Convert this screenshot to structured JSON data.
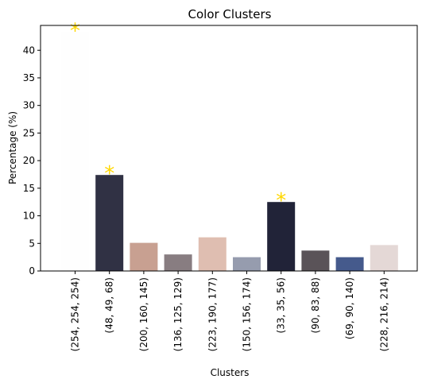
{
  "chart_data": {
    "type": "bar",
    "title": "Color Clusters",
    "xlabel": "Clusters",
    "ylabel": "Percentage (%)",
    "ylim": [
      0,
      44.5
    ],
    "yticks": [
      0,
      5,
      10,
      15,
      20,
      25,
      30,
      35,
      40
    ],
    "categories": [
      "(254, 254, 254)",
      "(48, 49, 68)",
      "(200, 160, 145)",
      "(136, 125, 129)",
      "(223, 190, 177)",
      "(150, 156, 174)",
      "(33, 35, 56)",
      "(90, 83, 88)",
      "(69, 90, 140)",
      "(228, 216, 214)"
    ],
    "values": [
      43.3,
      17.4,
      5.1,
      3.0,
      6.1,
      2.5,
      12.5,
      3.7,
      2.5,
      4.7
    ],
    "bar_colors": [
      "#fefefe",
      "#303144",
      "#c8a091",
      "#887d81",
      "#dfbeb1",
      "#969cae",
      "#212338",
      "#5a5358",
      "#455a8c",
      "#e4d8d6"
    ],
    "highlighted_indices": [
      0,
      1,
      6
    ],
    "marker": {
      "symbol": "*",
      "color": "#ffd700"
    },
    "grid": false,
    "legend": "none"
  }
}
